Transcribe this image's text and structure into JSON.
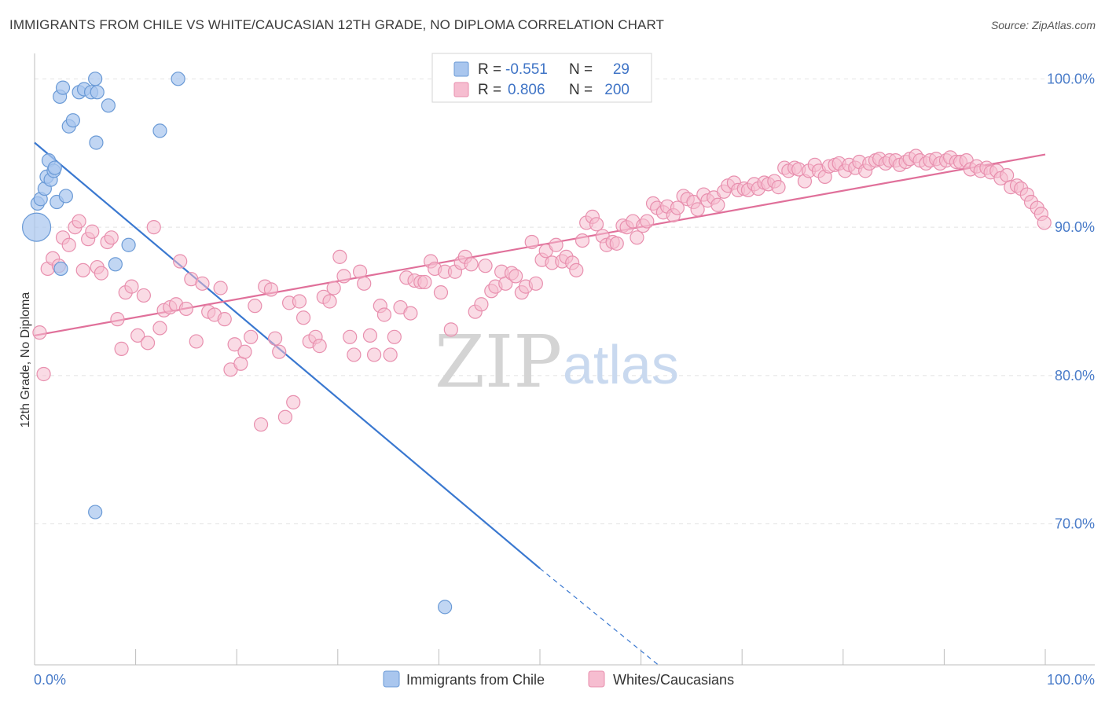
{
  "header": {
    "title": "IMMIGRANTS FROM CHILE VS WHITE/CAUCASIAN 12TH GRADE, NO DIPLOMA CORRELATION CHART",
    "source": "Source: ZipAtlas.com"
  },
  "legend": {
    "r_label": "R =",
    "n_label": "N =",
    "rows": [
      {
        "r": "-0.551",
        "n": "29"
      },
      {
        "r": "0.806",
        "n": "200"
      }
    ]
  },
  "watermark": {
    "zip": "ZIP",
    "atlas": "atlas"
  },
  "colors": {
    "blue_fill": "#a9c6ee",
    "blue_stroke": "#6a9ad6",
    "blue_line": "#3a78d0",
    "pink_fill": "#f6bdd0",
    "pink_stroke": "#e88fae",
    "pink_line": "#e0709a",
    "grid": "#e2e2e2",
    "tick_label": "#4a7cc9"
  },
  "chart_data": {
    "type": "scatter",
    "title": "IMMIGRANTS FROM CHILE VS WHITE/CAUCASIAN 12TH GRADE, NO DIPLOMA CORRELATION CHART",
    "xlabel": "",
    "ylabel": "12th Grade, No Diploma",
    "xlim": [
      0,
      100
    ],
    "ylim": [
      60.5,
      101.5
    ],
    "x_tick_labels": [
      "0.0%",
      "100.0%"
    ],
    "y_ticks": [
      70,
      80,
      90,
      100
    ],
    "y_tick_labels": [
      "70.0%",
      "80.0%",
      "90.0%",
      "100.0%"
    ],
    "grid": true,
    "legend_position": "top-center",
    "series": [
      {
        "name": "Immigrants from Chile",
        "r": -0.551,
        "n": 29,
        "trend": {
          "x0": 0,
          "y0": 95.7,
          "x1": 50,
          "y1": 67.0,
          "dashed_to_x": 61.7,
          "dashed_to_y": 60.5
        },
        "points": [
          [
            0.2,
            90.0,
            1
          ],
          [
            0.3,
            91.6,
            0
          ],
          [
            0.6,
            91.9,
            0
          ],
          [
            1.0,
            92.6,
            0
          ],
          [
            1.2,
            93.4,
            0
          ],
          [
            1.4,
            94.5,
            0
          ],
          [
            1.6,
            93.2,
            0
          ],
          [
            1.9,
            93.8,
            0
          ],
          [
            2.0,
            94.0,
            0
          ],
          [
            2.2,
            91.7,
            0
          ],
          [
            2.5,
            98.8,
            0
          ],
          [
            2.8,
            99.4,
            0
          ],
          [
            2.6,
            87.2,
            0
          ],
          [
            3.1,
            92.1,
            0
          ],
          [
            3.4,
            96.8,
            0
          ],
          [
            3.8,
            97.2,
            0
          ],
          [
            4.4,
            99.1,
            0
          ],
          [
            4.9,
            99.3,
            0
          ],
          [
            5.6,
            99.1,
            0
          ],
          [
            6.0,
            100.0,
            0
          ],
          [
            6.0,
            70.8,
            0
          ],
          [
            6.2,
            99.1,
            0
          ],
          [
            6.1,
            95.7,
            0
          ],
          [
            7.3,
            98.2,
            0
          ],
          [
            8.0,
            87.5,
            0
          ],
          [
            9.3,
            88.8,
            0
          ],
          [
            12.4,
            96.5,
            0
          ],
          [
            14.2,
            100.0,
            0
          ],
          [
            40.6,
            64.4,
            0
          ]
        ]
      },
      {
        "name": "Whites/Caucasians",
        "r": 0.806,
        "n": 200,
        "trend": {
          "x0": 0,
          "y0": 82.7,
          "x1": 100,
          "y1": 94.9
        },
        "points": [
          [
            0.5,
            82.9
          ],
          [
            0.9,
            80.1
          ],
          [
            1.3,
            87.2
          ],
          [
            1.8,
            87.9
          ],
          [
            2.4,
            87.4
          ],
          [
            2.8,
            89.3
          ],
          [
            3.4,
            88.8
          ],
          [
            4.0,
            90.0
          ],
          [
            4.4,
            90.4
          ],
          [
            4.8,
            87.1
          ],
          [
            5.3,
            89.2
          ],
          [
            5.7,
            89.7
          ],
          [
            6.2,
            87.3
          ],
          [
            6.6,
            86.9
          ],
          [
            7.2,
            89.0
          ],
          [
            7.6,
            89.3
          ],
          [
            8.2,
            83.8
          ],
          [
            8.6,
            81.8
          ],
          [
            9.0,
            85.6
          ],
          [
            9.6,
            86.0
          ],
          [
            10.2,
            82.7
          ],
          [
            10.8,
            85.4
          ],
          [
            11.2,
            82.2
          ],
          [
            11.8,
            90.0
          ],
          [
            12.4,
            83.2
          ],
          [
            12.8,
            84.4
          ],
          [
            13.4,
            84.6
          ],
          [
            14.0,
            84.8
          ],
          [
            14.4,
            87.7
          ],
          [
            15.0,
            84.5
          ],
          [
            15.5,
            86.5
          ],
          [
            16.0,
            82.3
          ],
          [
            16.6,
            86.2
          ],
          [
            17.2,
            84.3
          ],
          [
            17.8,
            84.1
          ],
          [
            18.4,
            85.9
          ],
          [
            18.8,
            83.8
          ],
          [
            19.4,
            80.4
          ],
          [
            19.8,
            82.1
          ],
          [
            20.4,
            80.8
          ],
          [
            20.8,
            81.6
          ],
          [
            21.4,
            82.6
          ],
          [
            21.8,
            84.7
          ],
          [
            22.4,
            76.7
          ],
          [
            22.8,
            86.0
          ],
          [
            23.4,
            85.8
          ],
          [
            23.8,
            82.5
          ],
          [
            24.2,
            81.6
          ],
          [
            24.8,
            77.2
          ],
          [
            25.2,
            84.9
          ],
          [
            25.6,
            78.2
          ],
          [
            26.2,
            85.0
          ],
          [
            26.6,
            83.9
          ],
          [
            27.2,
            82.3
          ],
          [
            27.8,
            82.6
          ],
          [
            28.2,
            82.0
          ],
          [
            28.6,
            85.3
          ],
          [
            29.2,
            85.0
          ],
          [
            29.6,
            85.9
          ],
          [
            30.2,
            88.0
          ],
          [
            30.6,
            86.7
          ],
          [
            31.2,
            82.6
          ],
          [
            31.6,
            81.4
          ],
          [
            32.2,
            87.0
          ],
          [
            32.6,
            86.2
          ],
          [
            33.2,
            82.7
          ],
          [
            33.6,
            81.4
          ],
          [
            34.2,
            84.7
          ],
          [
            34.6,
            84.1
          ],
          [
            35.2,
            81.4
          ],
          [
            35.6,
            82.6
          ],
          [
            36.2,
            84.6
          ],
          [
            36.8,
            86.6
          ],
          [
            37.2,
            84.2
          ],
          [
            37.6,
            86.4
          ],
          [
            38.2,
            86.3
          ],
          [
            38.6,
            86.3
          ],
          [
            39.2,
            87.7
          ],
          [
            39.6,
            87.2
          ],
          [
            40.2,
            85.6
          ],
          [
            40.6,
            87.0
          ],
          [
            41.2,
            83.1
          ],
          [
            41.6,
            87.0
          ],
          [
            42.2,
            87.6
          ],
          [
            42.6,
            88.0
          ],
          [
            43.2,
            87.5
          ],
          [
            43.6,
            84.3
          ],
          [
            44.2,
            84.8
          ],
          [
            44.6,
            87.4
          ],
          [
            45.2,
            85.7
          ],
          [
            45.6,
            86.0
          ],
          [
            46.2,
            87.0
          ],
          [
            46.6,
            86.2
          ],
          [
            47.2,
            86.9
          ],
          [
            47.6,
            86.7
          ],
          [
            48.2,
            85.6
          ],
          [
            48.6,
            86.0
          ],
          [
            49.2,
            89.0
          ],
          [
            49.6,
            86.2
          ],
          [
            50.2,
            87.8
          ],
          [
            50.6,
            88.4
          ],
          [
            51.2,
            87.6
          ],
          [
            51.6,
            88.8
          ],
          [
            52.2,
            87.7
          ],
          [
            52.6,
            88.0
          ],
          [
            53.2,
            87.6
          ],
          [
            53.6,
            87.1
          ],
          [
            54.2,
            89.1
          ],
          [
            54.6,
            90.3
          ],
          [
            55.2,
            90.7
          ],
          [
            55.6,
            90.2
          ],
          [
            56.2,
            89.4
          ],
          [
            56.6,
            88.8
          ],
          [
            57.2,
            89.0
          ],
          [
            57.6,
            88.9
          ],
          [
            58.2,
            90.1
          ],
          [
            58.6,
            90.0
          ],
          [
            59.2,
            90.4
          ],
          [
            59.6,
            89.3
          ],
          [
            60.2,
            90.1
          ],
          [
            60.6,
            90.4
          ],
          [
            61.2,
            91.6
          ],
          [
            61.6,
            91.3
          ],
          [
            62.2,
            91.0
          ],
          [
            62.6,
            91.4
          ],
          [
            63.2,
            90.8
          ],
          [
            63.6,
            91.3
          ],
          [
            64.2,
            92.1
          ],
          [
            64.6,
            91.9
          ],
          [
            65.2,
            91.7
          ],
          [
            65.6,
            91.2
          ],
          [
            66.2,
            92.2
          ],
          [
            66.6,
            91.8
          ],
          [
            67.2,
            92.0
          ],
          [
            67.6,
            91.5
          ],
          [
            68.2,
            92.4
          ],
          [
            68.6,
            92.8
          ],
          [
            69.2,
            93.0
          ],
          [
            69.6,
            92.5
          ],
          [
            70.2,
            92.6
          ],
          [
            70.6,
            92.5
          ],
          [
            71.2,
            92.9
          ],
          [
            71.6,
            92.6
          ],
          [
            72.2,
            93.0
          ],
          [
            72.6,
            92.9
          ],
          [
            73.2,
            93.1
          ],
          [
            73.6,
            92.7
          ],
          [
            74.2,
            94.0
          ],
          [
            74.6,
            93.8
          ],
          [
            75.2,
            94.0
          ],
          [
            75.6,
            93.9
          ],
          [
            76.2,
            93.1
          ],
          [
            76.6,
            93.8
          ],
          [
            77.2,
            94.2
          ],
          [
            77.6,
            93.8
          ],
          [
            78.2,
            93.4
          ],
          [
            78.6,
            94.1
          ],
          [
            79.2,
            94.2
          ],
          [
            79.6,
            94.3
          ],
          [
            80.2,
            93.8
          ],
          [
            80.6,
            94.2
          ],
          [
            81.2,
            94.0
          ],
          [
            81.6,
            94.4
          ],
          [
            82.2,
            93.8
          ],
          [
            82.6,
            94.3
          ],
          [
            83.2,
            94.5
          ],
          [
            83.6,
            94.6
          ],
          [
            84.2,
            94.3
          ],
          [
            84.6,
            94.5
          ],
          [
            85.2,
            94.5
          ],
          [
            85.6,
            94.2
          ],
          [
            86.2,
            94.4
          ],
          [
            86.6,
            94.6
          ],
          [
            87.2,
            94.8
          ],
          [
            87.6,
            94.5
          ],
          [
            88.2,
            94.3
          ],
          [
            88.6,
            94.5
          ],
          [
            89.2,
            94.6
          ],
          [
            89.6,
            94.3
          ],
          [
            90.2,
            94.5
          ],
          [
            90.6,
            94.7
          ],
          [
            91.2,
            94.4
          ],
          [
            91.6,
            94.4
          ],
          [
            92.2,
            94.5
          ],
          [
            92.6,
            93.9
          ],
          [
            93.2,
            94.1
          ],
          [
            93.6,
            93.8
          ],
          [
            94.2,
            94.0
          ],
          [
            94.6,
            93.7
          ],
          [
            95.2,
            93.8
          ],
          [
            95.6,
            93.3
          ],
          [
            96.2,
            93.5
          ],
          [
            96.6,
            92.7
          ],
          [
            97.2,
            92.8
          ],
          [
            97.6,
            92.6
          ],
          [
            98.2,
            92.2
          ],
          [
            98.6,
            91.7
          ],
          [
            99.2,
            91.3
          ],
          [
            99.6,
            90.9
          ],
          [
            99.9,
            90.3
          ]
        ]
      }
    ],
    "x_ticks_minor": [
      10,
      20,
      30,
      40,
      50,
      60,
      70,
      80,
      90,
      100
    ]
  }
}
